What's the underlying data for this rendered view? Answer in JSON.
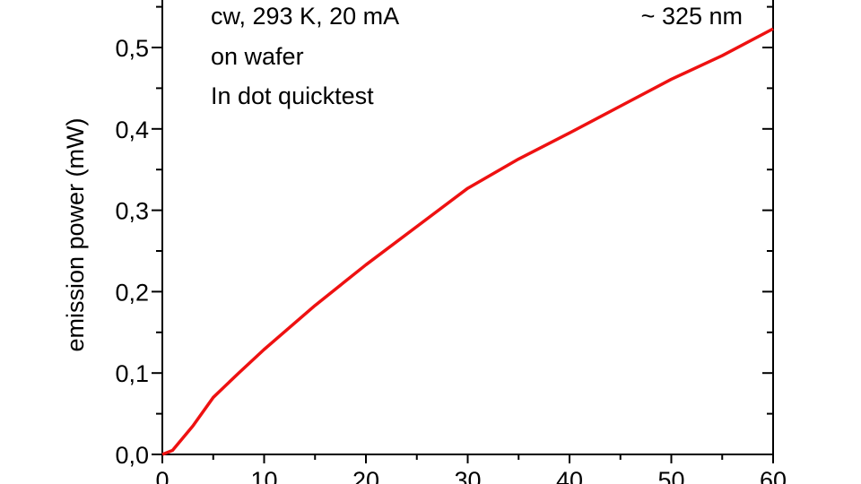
{
  "chart_data": {
    "type": "line",
    "ylabel": "emission power (mW)",
    "annotations": [
      "cw, 293 K, 20 mA",
      "on wafer",
      "In dot quicktest",
      "~ 325 nm"
    ],
    "x": [
      0,
      1,
      2,
      3,
      5,
      7.5,
      10,
      15,
      20,
      25,
      30,
      35,
      40,
      45,
      50,
      55,
      60
    ],
    "series": [
      {
        "color": "#ee1111",
        "values": [
          0,
          0.005,
          0.02,
          0.035,
          0.07,
          0.1,
          0.129,
          0.183,
          0.233,
          0.28,
          0.327,
          0.363,
          0.395,
          0.428,
          0.461,
          0.49,
          0.523
        ]
      }
    ],
    "xlim": [
      0,
      60
    ],
    "ylim": [
      0,
      0.56
    ],
    "xticks": [
      0,
      10,
      20,
      30,
      40,
      50,
      60
    ],
    "yticks": [
      {
        "value": 0,
        "label": "0,0"
      },
      {
        "value": 0.1,
        "label": "0,1"
      },
      {
        "value": 0.2,
        "label": "0,2"
      },
      {
        "value": 0.3,
        "label": "0,3"
      },
      {
        "value": 0.4,
        "label": "0,4"
      },
      {
        "value": 0.5,
        "label": "0,5"
      }
    ],
    "xminorticks": [
      5,
      15,
      25,
      35,
      45,
      55
    ],
    "yminorticks": [
      0.05,
      0.15,
      0.25,
      0.35,
      0.45,
      0.55
    ]
  }
}
